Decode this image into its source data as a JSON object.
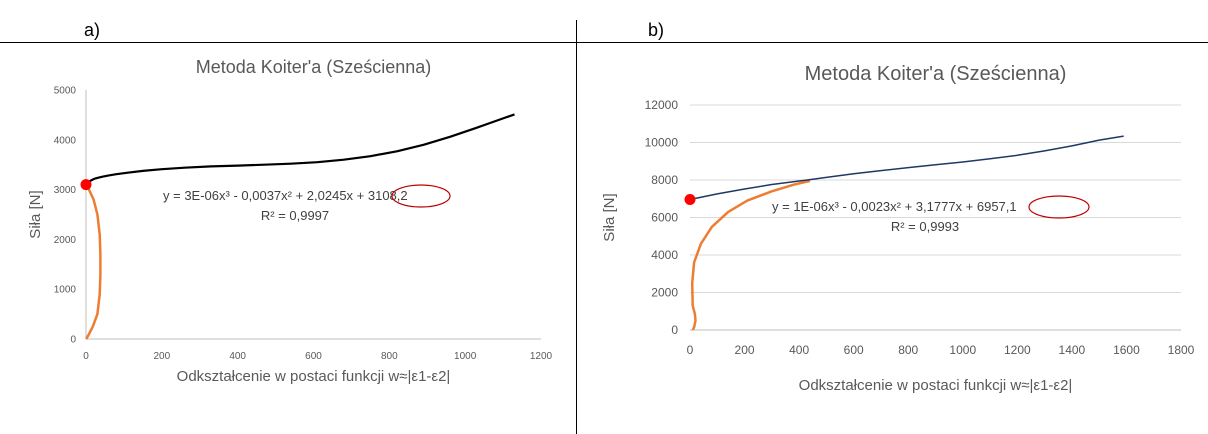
{
  "panels": [
    "a)",
    "b)"
  ],
  "chart_data": [
    {
      "type": "scatter",
      "title": "Metoda Koiter'a (Sześcienna)",
      "xlabel": "Odkształcenie w postaci funkcji w≈|ε1-ε2|",
      "ylabel": "Siła [N]",
      "xlim": [
        0,
        1200
      ],
      "ylim": [
        0,
        5000
      ],
      "xticks": [
        0,
        200,
        400,
        600,
        800,
        1000,
        1200
      ],
      "yticks": [
        0,
        1000,
        2000,
        3000,
        4000,
        5000
      ],
      "grid": false,
      "colors": {
        "measured": "#ED7D31",
        "trend": "#000000",
        "point": "#FF0000",
        "ellipse": "#C00000",
        "axis": "#BFBFBF",
        "tick_text": "#595959"
      },
      "series": [
        {
          "x": [
            0,
            5,
            10,
            15,
            20,
            25,
            35,
            45,
            60,
            80,
            110,
            150,
            200,
            260,
            330,
            400,
            470,
            540,
            610,
            680,
            750,
            820,
            890,
            960,
            1030,
            1100,
            1130
          ],
          "y": [
            3100,
            3145,
            3170,
            3190,
            3210,
            3225,
            3245,
            3262,
            3285,
            3310,
            3340,
            3375,
            3410,
            3440,
            3465,
            3482,
            3500,
            3520,
            3550,
            3600,
            3670,
            3770,
            3900,
            4060,
            4240,
            4430,
            4510
          ]
        },
        {
          "x": [
            0,
            8,
            20,
            30,
            36,
            38,
            38,
            36,
            30,
            18,
            8,
            3,
            0
          ],
          "y": [
            3100,
            3000,
            2800,
            2500,
            2100,
            1700,
            1300,
            900,
            500,
            250,
            100,
            30,
            0
          ]
        }
      ],
      "marker": {
        "x": 0,
        "y": 3100
      },
      "equation": "y = 3E-06x³ - 0,0037x² + 2,0245x + 3108,2",
      "r2": "R² = 0,9997",
      "highlight": "3108,2"
    },
    {
      "type": "scatter",
      "title": "Metoda Koiter'a (Sześcienna)",
      "xlabel": "Odkształcenie w postaci funkcji w≈|ε1-ε2|",
      "ylabel": "Siła [N]",
      "xlim": [
        0,
        1800
      ],
      "ylim": [
        0,
        12000
      ],
      "xticks": [
        0,
        200,
        400,
        600,
        800,
        1000,
        1200,
        1400,
        1600,
        1800
      ],
      "yticks": [
        0,
        2000,
        4000,
        6000,
        8000,
        10000,
        12000
      ],
      "grid": true,
      "colors": {
        "measured": "#ED7D31",
        "data": "#1F3864",
        "trend": "#3F3F3F",
        "point": "#FF0000",
        "ellipse": "#C00000",
        "axis": "#BFBFBF",
        "tick_text": "#595959",
        "gridline": "#D9D9D9"
      },
      "series": [
        {
          "x": [
            0,
            100,
            200,
            300,
            440,
            500,
            600,
            700,
            800,
            900,
            1000,
            1100,
            1200,
            1300,
            1400,
            1500,
            1590
          ],
          "y": [
            6960,
            7260,
            7520,
            7760,
            8020,
            8140,
            8330,
            8500,
            8660,
            8810,
            8960,
            9130,
            9320,
            9550,
            9820,
            10130,
            10340
          ]
        },
        {
          "x": [
            10,
            15,
            20,
            18,
            10,
            8,
            15,
            40,
            80,
            140,
            210,
            300,
            380,
            440
          ],
          "y": [
            0,
            150,
            500,
            850,
            1300,
            2500,
            3600,
            4600,
            5500,
            6300,
            6900,
            7400,
            7750,
            7950
          ]
        }
      ],
      "marker": {
        "x": 0,
        "y": 6960
      },
      "equation": "y = 1E-06x³ - 0,0023x² + 3,1777x + 6957,1",
      "r2": "R² = 0,9993",
      "highlight": "6957,1"
    }
  ]
}
